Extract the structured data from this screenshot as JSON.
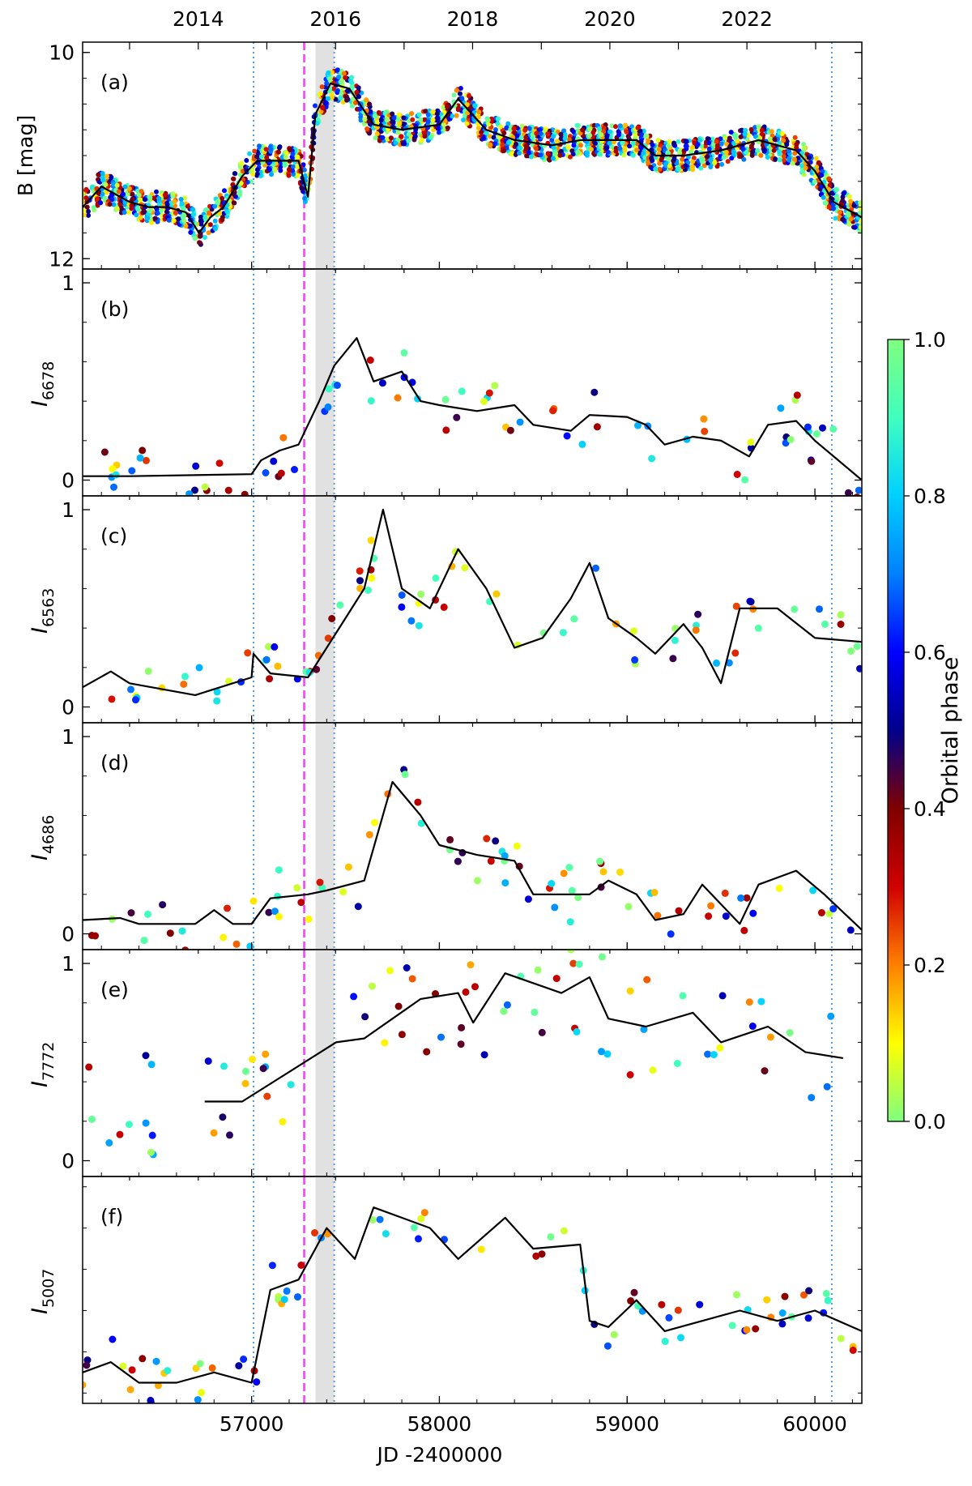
{
  "chart_data": {
    "type": "scatter",
    "x_axis": {
      "label": "JD -2400000",
      "range": [
        56100,
        60250
      ],
      "ticks": [
        57000,
        58000,
        59000,
        60000
      ],
      "tick_labels": [
        "57000",
        "58000",
        "59000",
        "60000"
      ],
      "top_ticks": [
        56350,
        56716,
        57081,
        57447,
        57812,
        58177,
        58543,
        58908,
        59273,
        59638,
        60004
      ],
      "top_labels": [
        {
          "jd": 56716,
          "text": "2014"
        },
        {
          "jd": 57447,
          "text": "2016"
        },
        {
          "jd": 58177,
          "text": "2018"
        },
        {
          "jd": 58908,
          "text": "2020"
        },
        {
          "jd": 59638,
          "text": "2022"
        }
      ]
    },
    "markers": {
      "dotted_lines_jd": [
        57010,
        57440,
        60090
      ],
      "dashed_line_jd": 57280,
      "shaded_band_jd": [
        57340,
        57440
      ]
    },
    "colorbar": {
      "label": "Orbital phase",
      "ticks": [
        "0.0",
        "0.2",
        "0.4",
        "0.6",
        "0.8",
        "1.0"
      ],
      "stops": [
        "#7fff7f",
        "#ffff00",
        "#ff8000",
        "#d00000",
        "#800000",
        "#00008b",
        "#0000ff",
        "#0080ff",
        "#00d0ff",
        "#40ffbf",
        "#7fff7f"
      ]
    },
    "panels": [
      {
        "tag": "(a)",
        "ylabel": "B [mag]",
        "ylim": [
          9.9,
          12.1
        ],
        "inverted": true,
        "yticks": [
          10,
          12
        ],
        "ytick_labels": [
          "10",
          "12"
        ],
        "minor_step": 0.25,
        "points_per_day": 0.6,
        "seed": 11,
        "scatter_spread": 0.15,
        "line": [
          [
            56100,
            11.5
          ],
          [
            56200,
            11.3
          ],
          [
            56350,
            11.45
          ],
          [
            56450,
            11.5
          ],
          [
            56550,
            11.5
          ],
          [
            56650,
            11.55
          ],
          [
            56720,
            11.75
          ],
          [
            56780,
            11.6
          ],
          [
            56850,
            11.5
          ],
          [
            56950,
            11.2
          ],
          [
            57030,
            11.05
          ],
          [
            57250,
            11.05
          ],
          [
            57300,
            11.4
          ],
          [
            57340,
            10.6
          ],
          [
            57420,
            10.3
          ],
          [
            57520,
            10.35
          ],
          [
            57650,
            10.7
          ],
          [
            57800,
            10.75
          ],
          [
            58000,
            10.7
          ],
          [
            58100,
            10.45
          ],
          [
            58250,
            10.75
          ],
          [
            58400,
            10.85
          ],
          [
            58600,
            10.9
          ],
          [
            58750,
            10.85
          ],
          [
            58900,
            10.85
          ],
          [
            59050,
            10.85
          ],
          [
            59150,
            11.0
          ],
          [
            59300,
            11.0
          ],
          [
            59500,
            10.95
          ],
          [
            59700,
            10.85
          ],
          [
            59900,
            10.95
          ],
          [
            60000,
            11.15
          ],
          [
            60100,
            11.45
          ],
          [
            60250,
            11.6
          ]
        ]
      },
      {
        "tag": "(b)",
        "ylabel": "I",
        "ylabel_sub": "6678",
        "ylim": [
          -0.08,
          1.07
        ],
        "yticks": [
          0,
          1
        ],
        "ytick_labels": [
          "0",
          "1"
        ],
        "minor_step": 0.2,
        "points_per_day": 0.02,
        "seed": 23,
        "scatter_spread": 0.14,
        "line": [
          [
            56100,
            0.02
          ],
          [
            56350,
            0.02
          ],
          [
            57000,
            0.03
          ],
          [
            57050,
            0.1
          ],
          [
            57150,
            0.15
          ],
          [
            57250,
            0.18
          ],
          [
            57360,
            0.4
          ],
          [
            57440,
            0.58
          ],
          [
            57560,
            0.72
          ],
          [
            57650,
            0.5
          ],
          [
            57800,
            0.55
          ],
          [
            57900,
            0.4
          ],
          [
            58000,
            0.38
          ],
          [
            58200,
            0.35
          ],
          [
            58400,
            0.38
          ],
          [
            58500,
            0.28
          ],
          [
            58700,
            0.25
          ],
          [
            58800,
            0.33
          ],
          [
            59000,
            0.32
          ],
          [
            59100,
            0.28
          ],
          [
            59200,
            0.18
          ],
          [
            59350,
            0.22
          ],
          [
            59500,
            0.2
          ],
          [
            59650,
            0.12
          ],
          [
            59750,
            0.28
          ],
          [
            59900,
            0.3
          ],
          [
            60000,
            0.2
          ],
          [
            60250,
            0.0
          ]
        ]
      },
      {
        "tag": "(c)",
        "ylabel": "I",
        "ylabel_sub": "6563",
        "ylim": [
          -0.08,
          1.07
        ],
        "yticks": [
          0,
          1
        ],
        "ytick_labels": [
          "0",
          "1"
        ],
        "minor_step": 0.2,
        "points_per_day": 0.02,
        "seed": 37,
        "scatter_spread": 0.15,
        "line": [
          [
            56100,
            0.1
          ],
          [
            56250,
            0.18
          ],
          [
            56350,
            0.12
          ],
          [
            56700,
            0.06
          ],
          [
            57000,
            0.15
          ],
          [
            57010,
            0.27
          ],
          [
            57100,
            0.17
          ],
          [
            57300,
            0.15
          ],
          [
            57400,
            0.3
          ],
          [
            57500,
            0.45
          ],
          [
            57600,
            0.6
          ],
          [
            57700,
            1.0
          ],
          [
            57800,
            0.6
          ],
          [
            57950,
            0.5
          ],
          [
            58100,
            0.8
          ],
          [
            58250,
            0.6
          ],
          [
            58400,
            0.3
          ],
          [
            58550,
            0.35
          ],
          [
            58700,
            0.55
          ],
          [
            58800,
            0.73
          ],
          [
            58900,
            0.45
          ],
          [
            59050,
            0.35
          ],
          [
            59150,
            0.27
          ],
          [
            59300,
            0.42
          ],
          [
            59400,
            0.3
          ],
          [
            59500,
            0.12
          ],
          [
            59600,
            0.5
          ],
          [
            59800,
            0.5
          ],
          [
            60000,
            0.35
          ],
          [
            60250,
            0.33
          ]
        ]
      },
      {
        "tag": "(d)",
        "ylabel": "I",
        "ylabel_sub": "4686",
        "ylim": [
          -0.08,
          1.07
        ],
        "yticks": [
          0,
          1
        ],
        "ytick_labels": [
          "0",
          "1"
        ],
        "minor_step": 0.2,
        "points_per_day": 0.02,
        "seed": 41,
        "scatter_spread": 0.14,
        "line": [
          [
            56100,
            0.07
          ],
          [
            56300,
            0.08
          ],
          [
            56400,
            0.05
          ],
          [
            56700,
            0.05
          ],
          [
            56800,
            0.12
          ],
          [
            56900,
            0.05
          ],
          [
            57000,
            0.05
          ],
          [
            57100,
            0.18
          ],
          [
            57300,
            0.2
          ],
          [
            57400,
            0.22
          ],
          [
            57600,
            0.27
          ],
          [
            57750,
            0.77
          ],
          [
            57900,
            0.6
          ],
          [
            58000,
            0.45
          ],
          [
            58200,
            0.4
          ],
          [
            58400,
            0.37
          ],
          [
            58500,
            0.2
          ],
          [
            58800,
            0.2
          ],
          [
            58900,
            0.27
          ],
          [
            59050,
            0.2
          ],
          [
            59150,
            0.07
          ],
          [
            59300,
            0.1
          ],
          [
            59400,
            0.25
          ],
          [
            59500,
            0.15
          ],
          [
            59600,
            0.05
          ],
          [
            59700,
            0.25
          ],
          [
            59900,
            0.32
          ],
          [
            60050,
            0.2
          ],
          [
            60250,
            0.02
          ]
        ]
      },
      {
        "tag": "(e)",
        "ylabel": "I",
        "ylabel_sub": "7772",
        "ylim": [
          -0.08,
          1.07
        ],
        "yticks": [
          0,
          1
        ],
        "ytick_labels": [
          "0",
          "1"
        ],
        "minor_step": 0.2,
        "points_per_day": 0.02,
        "seed": 53,
        "scatter_spread": 0.28,
        "line": [
          [
            56750,
            0.3
          ],
          [
            56950,
            0.3
          ],
          [
            57450,
            0.6
          ],
          [
            57600,
            0.62
          ],
          [
            57900,
            0.82
          ],
          [
            58100,
            0.85
          ],
          [
            58180,
            0.7
          ],
          [
            58350,
            0.95
          ],
          [
            58650,
            0.85
          ],
          [
            58800,
            0.93
          ],
          [
            58900,
            0.72
          ],
          [
            59100,
            0.68
          ],
          [
            59350,
            0.75
          ],
          [
            59500,
            0.6
          ],
          [
            59750,
            0.68
          ],
          [
            59950,
            0.55
          ],
          [
            60150,
            0.52
          ]
        ]
      },
      {
        "tag": "(f)",
        "ylabel": "I",
        "ylabel_sub": "5007",
        "ylim": [
          -0.05,
          1.05
        ],
        "yticks": [],
        "ytick_labels": [],
        "minor_step": 0.2,
        "points_per_day": 0.02,
        "seed": 67,
        "scatter_spread": 0.12,
        "line": [
          [
            56100,
            0.1
          ],
          [
            56250,
            0.15
          ],
          [
            56400,
            0.05
          ],
          [
            56600,
            0.05
          ],
          [
            56800,
            0.1
          ],
          [
            57000,
            0.05
          ],
          [
            57100,
            0.5
          ],
          [
            57250,
            0.55
          ],
          [
            57400,
            0.8
          ],
          [
            57550,
            0.65
          ],
          [
            57650,
            0.9
          ],
          [
            57800,
            0.85
          ],
          [
            57950,
            0.8
          ],
          [
            58100,
            0.65
          ],
          [
            58350,
            0.85
          ],
          [
            58500,
            0.7
          ],
          [
            58750,
            0.72
          ],
          [
            58800,
            0.35
          ],
          [
            58900,
            0.32
          ],
          [
            59050,
            0.45
          ],
          [
            59200,
            0.3
          ],
          [
            59400,
            0.35
          ],
          [
            59600,
            0.4
          ],
          [
            59800,
            0.35
          ],
          [
            60000,
            0.4
          ],
          [
            60250,
            0.3
          ]
        ]
      }
    ]
  }
}
